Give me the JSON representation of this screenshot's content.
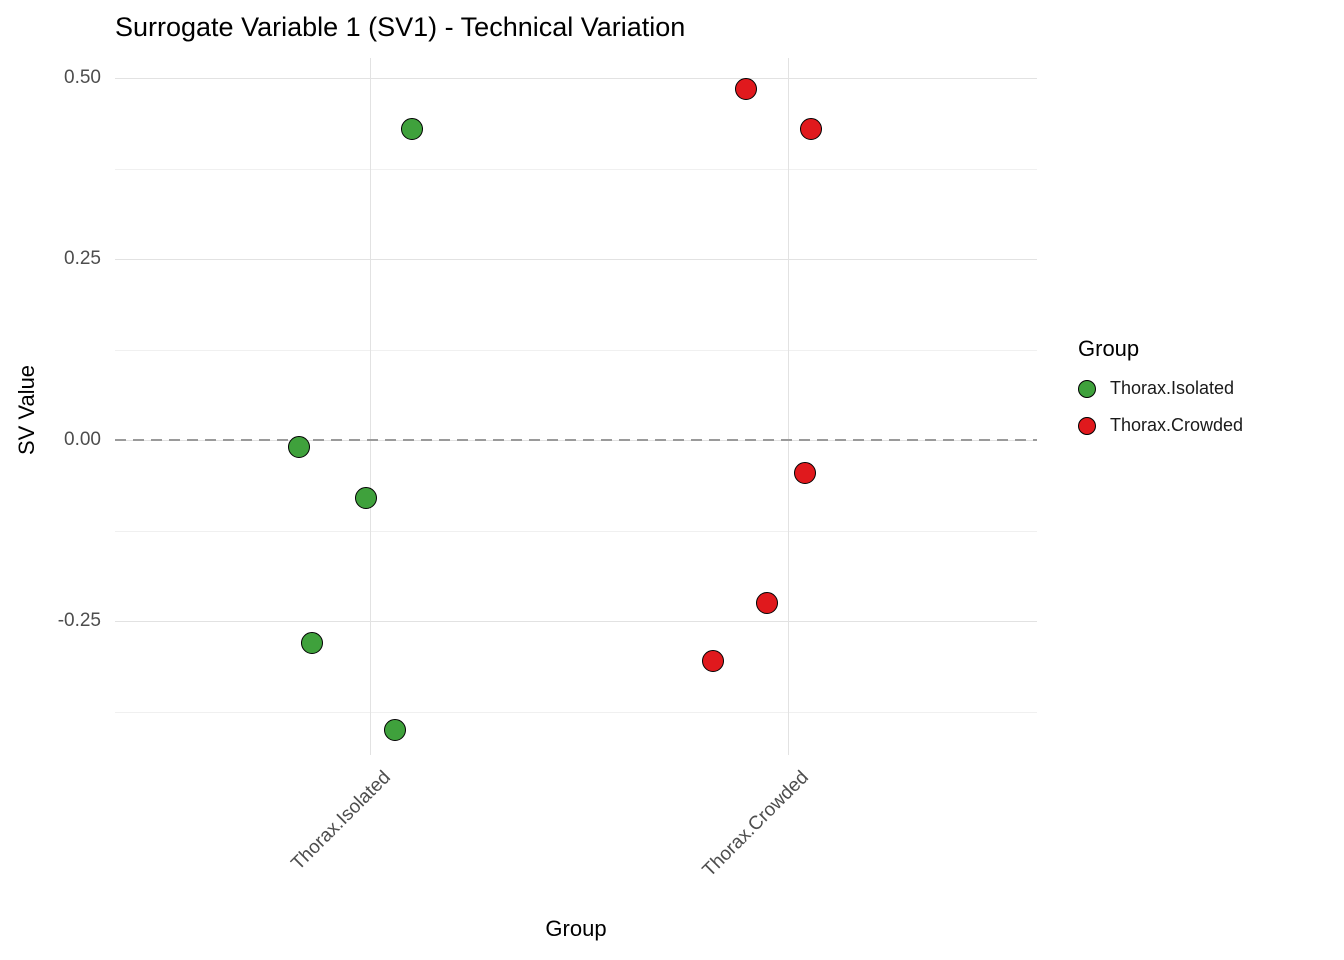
{
  "title": "Surrogate Variable 1 (SV1) - Technical Variation",
  "legend": {
    "title": "Group",
    "items": [
      {
        "label": "Thorax.Isolated",
        "color": "#3FA13C"
      },
      {
        "label": "Thorax.Crowded",
        "color": "#E0191D"
      }
    ]
  },
  "chart_data": {
    "type": "scatter",
    "title": "Surrogate Variable 1 (SV1) - Technical Variation",
    "xlabel": "Group",
    "ylabel": "SV Value",
    "ylim": [
      -0.435,
      0.528
    ],
    "y_major_ticks": [
      0.5,
      0.25,
      0,
      -0.25
    ],
    "y_minor_ticks": [
      0.375,
      0.125,
      -0.125,
      -0.375
    ],
    "categories": [
      "Thorax.Isolated",
      "Thorax.Crowded"
    ],
    "reference_line_y": 0,
    "grid": true,
    "legend_position": "right",
    "series": [
      {
        "name": "Thorax.Isolated",
        "color": "#3FA13C",
        "points": [
          {
            "x_offset": 0.1,
            "y": 0.43
          },
          {
            "x_offset": -0.17,
            "y": -0.01
          },
          {
            "x_offset": -0.01,
            "y": -0.08
          },
          {
            "x_offset": -0.14,
            "y": -0.28
          },
          {
            "x_offset": 0.06,
            "y": -0.4
          }
        ]
      },
      {
        "name": "Thorax.Crowded",
        "color": "#E0191D",
        "points": [
          {
            "x_offset": -0.1,
            "y": 0.485
          },
          {
            "x_offset": 0.055,
            "y": 0.43
          },
          {
            "x_offset": 0.04,
            "y": -0.045
          },
          {
            "x_offset": -0.05,
            "y": -0.225
          },
          {
            "x_offset": -0.18,
            "y": -0.305
          }
        ]
      }
    ]
  }
}
